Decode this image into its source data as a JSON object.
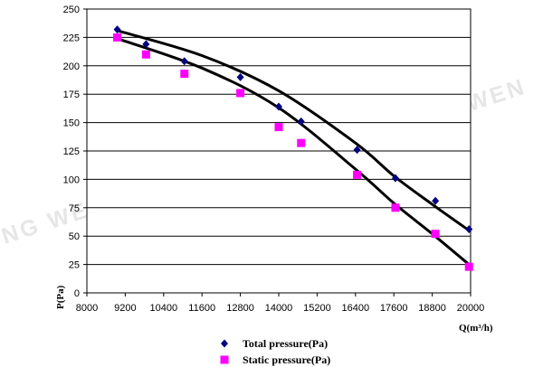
{
  "watermark": "RONG WEN",
  "chart_data": {
    "type": "scatter",
    "xlabel": "Q(m³/h)",
    "ylabel": "P(Pa)",
    "xlim": [
      8000,
      20000
    ],
    "ylim": [
      0,
      250
    ],
    "xticks": [
      8000,
      9200,
      10400,
      11600,
      12800,
      14000,
      15200,
      16400,
      17600,
      18800,
      20000
    ],
    "yticks": [
      0,
      25,
      50,
      75,
      100,
      125,
      150,
      175,
      200,
      225,
      250
    ],
    "grid": true,
    "legend_position": "bottom",
    "series": [
      {
        "name": "Total pressure(Pa)",
        "marker": "diamond",
        "color": "#000080",
        "x": [
          8950,
          9850,
          11050,
          12800,
          14000,
          14700,
          16450,
          17650,
          18900,
          19950
        ],
        "y": [
          232,
          219,
          204,
          190,
          164,
          151,
          126,
          101,
          81,
          56
        ]
      },
      {
        "name": "Static pressure(Pa)",
        "marker": "square",
        "color": "#ff00ff",
        "x": [
          8950,
          9850,
          11050,
          12800,
          14000,
          14700,
          16450,
          17650,
          18900,
          19950
        ],
        "y": [
          225,
          210,
          193,
          176,
          146,
          132,
          104,
          75,
          52,
          23
        ]
      }
    ],
    "trendlines": [
      {
        "x": [
          8950,
          11600,
          14000,
          16400,
          17600,
          18800,
          19950
        ],
        "y": [
          231,
          209,
          178,
          132,
          103,
          78,
          55
        ]
      },
      {
        "x": [
          8950,
          11600,
          14000,
          16400,
          17600,
          18800,
          19950
        ],
        "y": [
          224,
          198,
          163,
          109,
          79,
          52,
          25
        ]
      }
    ]
  }
}
